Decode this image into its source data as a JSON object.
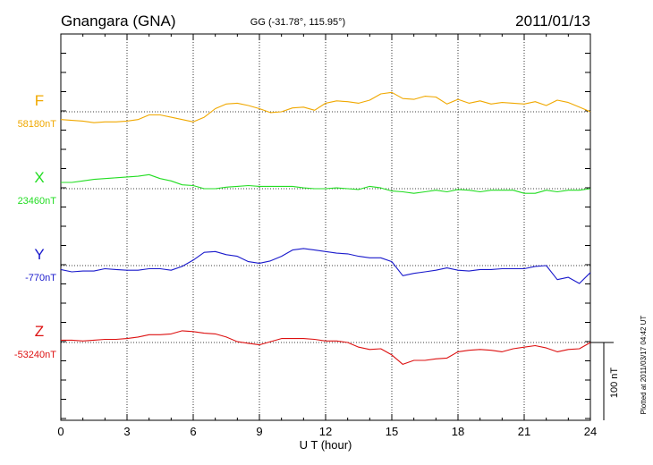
{
  "chart_data": {
    "type": "line",
    "station": "Gnangara (GNA)",
    "coords": "GG (-31.78°, 115.95°)",
    "date": "2011/01/13",
    "xlabel": "U T (hour)",
    "xlim": [
      0,
      24
    ],
    "x_ticks": [
      "0",
      "3",
      "6",
      "9",
      "12",
      "15",
      "18",
      "21",
      "24"
    ],
    "scale_label": "100 nT",
    "scale_nT": 100,
    "plotted_note": "Plotted at 2011/03/17 04:42 UT",
    "grid": true,
    "x": [
      0,
      0.5,
      1,
      1.5,
      2,
      2.5,
      3,
      3.5,
      4,
      4.5,
      5,
      5.5,
      6,
      6.5,
      7,
      7.5,
      8,
      8.5,
      9,
      9.5,
      10,
      10.5,
      11,
      11.5,
      12,
      12.5,
      13,
      13.5,
      14,
      14.5,
      15,
      15.5,
      16,
      16.5,
      17,
      17.5,
      18,
      18.5,
      19,
      19.5,
      20,
      20.5,
      21,
      21.5,
      22,
      22.5,
      23,
      23.5,
      24
    ],
    "series": [
      {
        "name": "F",
        "baseline_label": "58180nT",
        "color": "#f0a800",
        "values": [
          -10,
          -11,
          -12,
          -14,
          -13,
          -13,
          -12,
          -10,
          -4,
          -4,
          -7,
          -10,
          -13,
          -7,
          4,
          10,
          11,
          8,
          4,
          -1,
          0,
          5,
          6,
          2,
          11,
          14,
          13,
          11,
          15,
          23,
          25,
          17,
          16,
          20,
          19,
          10,
          16,
          11,
          14,
          10,
          12,
          11,
          10,
          13,
          8,
          15,
          12,
          6,
          0
        ]
      },
      {
        "name": "X",
        "baseline_label": "23460nT",
        "color": "#22dd22",
        "values": [
          8,
          8,
          10,
          12,
          13,
          14,
          15,
          16,
          18,
          13,
          10,
          5,
          4,
          0,
          0,
          2,
          3,
          4,
          3,
          3,
          3,
          3,
          1,
          0,
          0,
          1,
          0,
          -1,
          3,
          1,
          -3,
          -4,
          -6,
          -4,
          -2,
          -4,
          -1,
          -2,
          -4,
          -2,
          -2,
          -2,
          -6,
          -6,
          -2,
          -4,
          -2,
          -2,
          0
        ]
      },
      {
        "name": "Y",
        "baseline_label": "-770nT",
        "color": "#1a1acc",
        "values": [
          -5,
          -8,
          -7,
          -7,
          -4,
          -5,
          -6,
          -6,
          -4,
          -4,
          -6,
          -1,
          7,
          17,
          18,
          14,
          12,
          5,
          3,
          6,
          12,
          20,
          22,
          20,
          18,
          16,
          15,
          12,
          10,
          10,
          5,
          -13,
          -10,
          -8,
          -6,
          -3,
          -6,
          -7,
          -5,
          -5,
          -4,
          -4,
          -4,
          -1,
          0,
          -18,
          -15,
          -23,
          -9
        ]
      },
      {
        "name": "Z",
        "baseline_label": "-53240nT",
        "color": "#dd1111",
        "values": [
          3,
          3,
          2,
          3,
          4,
          4,
          5,
          7,
          10,
          10,
          11,
          15,
          14,
          12,
          11,
          7,
          1,
          -1,
          -3,
          1,
          5,
          5,
          5,
          4,
          2,
          2,
          0,
          -6,
          -9,
          -8,
          -16,
          -28,
          -23,
          -23,
          -21,
          -20,
          -12,
          -10,
          -9,
          -10,
          -12,
          -8,
          -6,
          -4,
          -7,
          -12,
          -9,
          -8,
          0
        ]
      }
    ]
  }
}
